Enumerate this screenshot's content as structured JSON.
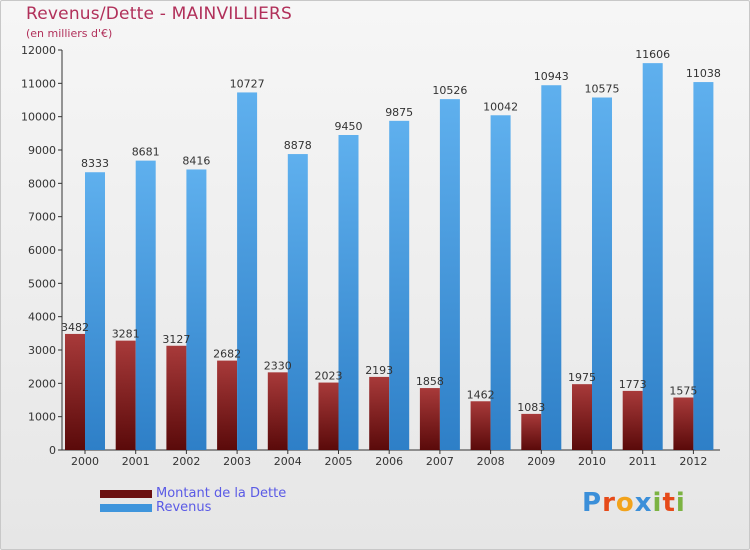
{
  "header": {
    "title": "Revenus/Dette - MAINVILLIERS",
    "subtitle": "(en milliers d'€)"
  },
  "logo": {
    "text": "Proxiti",
    "letter_colors": [
      "#3b8fd9",
      "#e64a19",
      "#f2a31b",
      "#3b8fd9",
      "#7cb342",
      "#e64a19",
      "#7cb342"
    ]
  },
  "chart_data": {
    "type": "bar",
    "title": "Revenus/Dette - MAINVILLIERS",
    "subtitle": "(en milliers d'€)",
    "xlabel": "",
    "ylabel": "",
    "ylim": [
      0,
      12000
    ],
    "ytick_step": 1000,
    "grid": false,
    "legend_position": "bottom-left",
    "categories": [
      "2000",
      "2001",
      "2002",
      "2003",
      "2004",
      "2005",
      "2006",
      "2007",
      "2008",
      "2009",
      "2010",
      "2011",
      "2012"
    ],
    "series": [
      {
        "name": "Montant de la Dette",
        "color": "#7b1a1a",
        "values": [
          3482,
          3281,
          3127,
          2682,
          2330,
          2023,
          2193,
          1858,
          1462,
          1083,
          1975,
          1773,
          1575
        ],
        "labels": [
          "3482",
          "3281",
          "3127",
          "2682",
          "2330",
          "2023",
          "2193",
          "1858",
          "1462",
          "1083",
          "1975",
          "1773",
          "1575"
        ]
      },
      {
        "name": "Revenus",
        "color": "#3f95dc",
        "values": [
          8333,
          8681,
          8416,
          10727,
          8878,
          9450,
          9875,
          10526,
          10042,
          10943,
          10575,
          11606,
          11038
        ],
        "labels": [
          "8333",
          "8681",
          "8416",
          "10727",
          "8878",
          "9450",
          "9875",
          "10526",
          "10042",
          "10943",
          "10575",
          "11606",
          "11038"
        ]
      }
    ]
  }
}
